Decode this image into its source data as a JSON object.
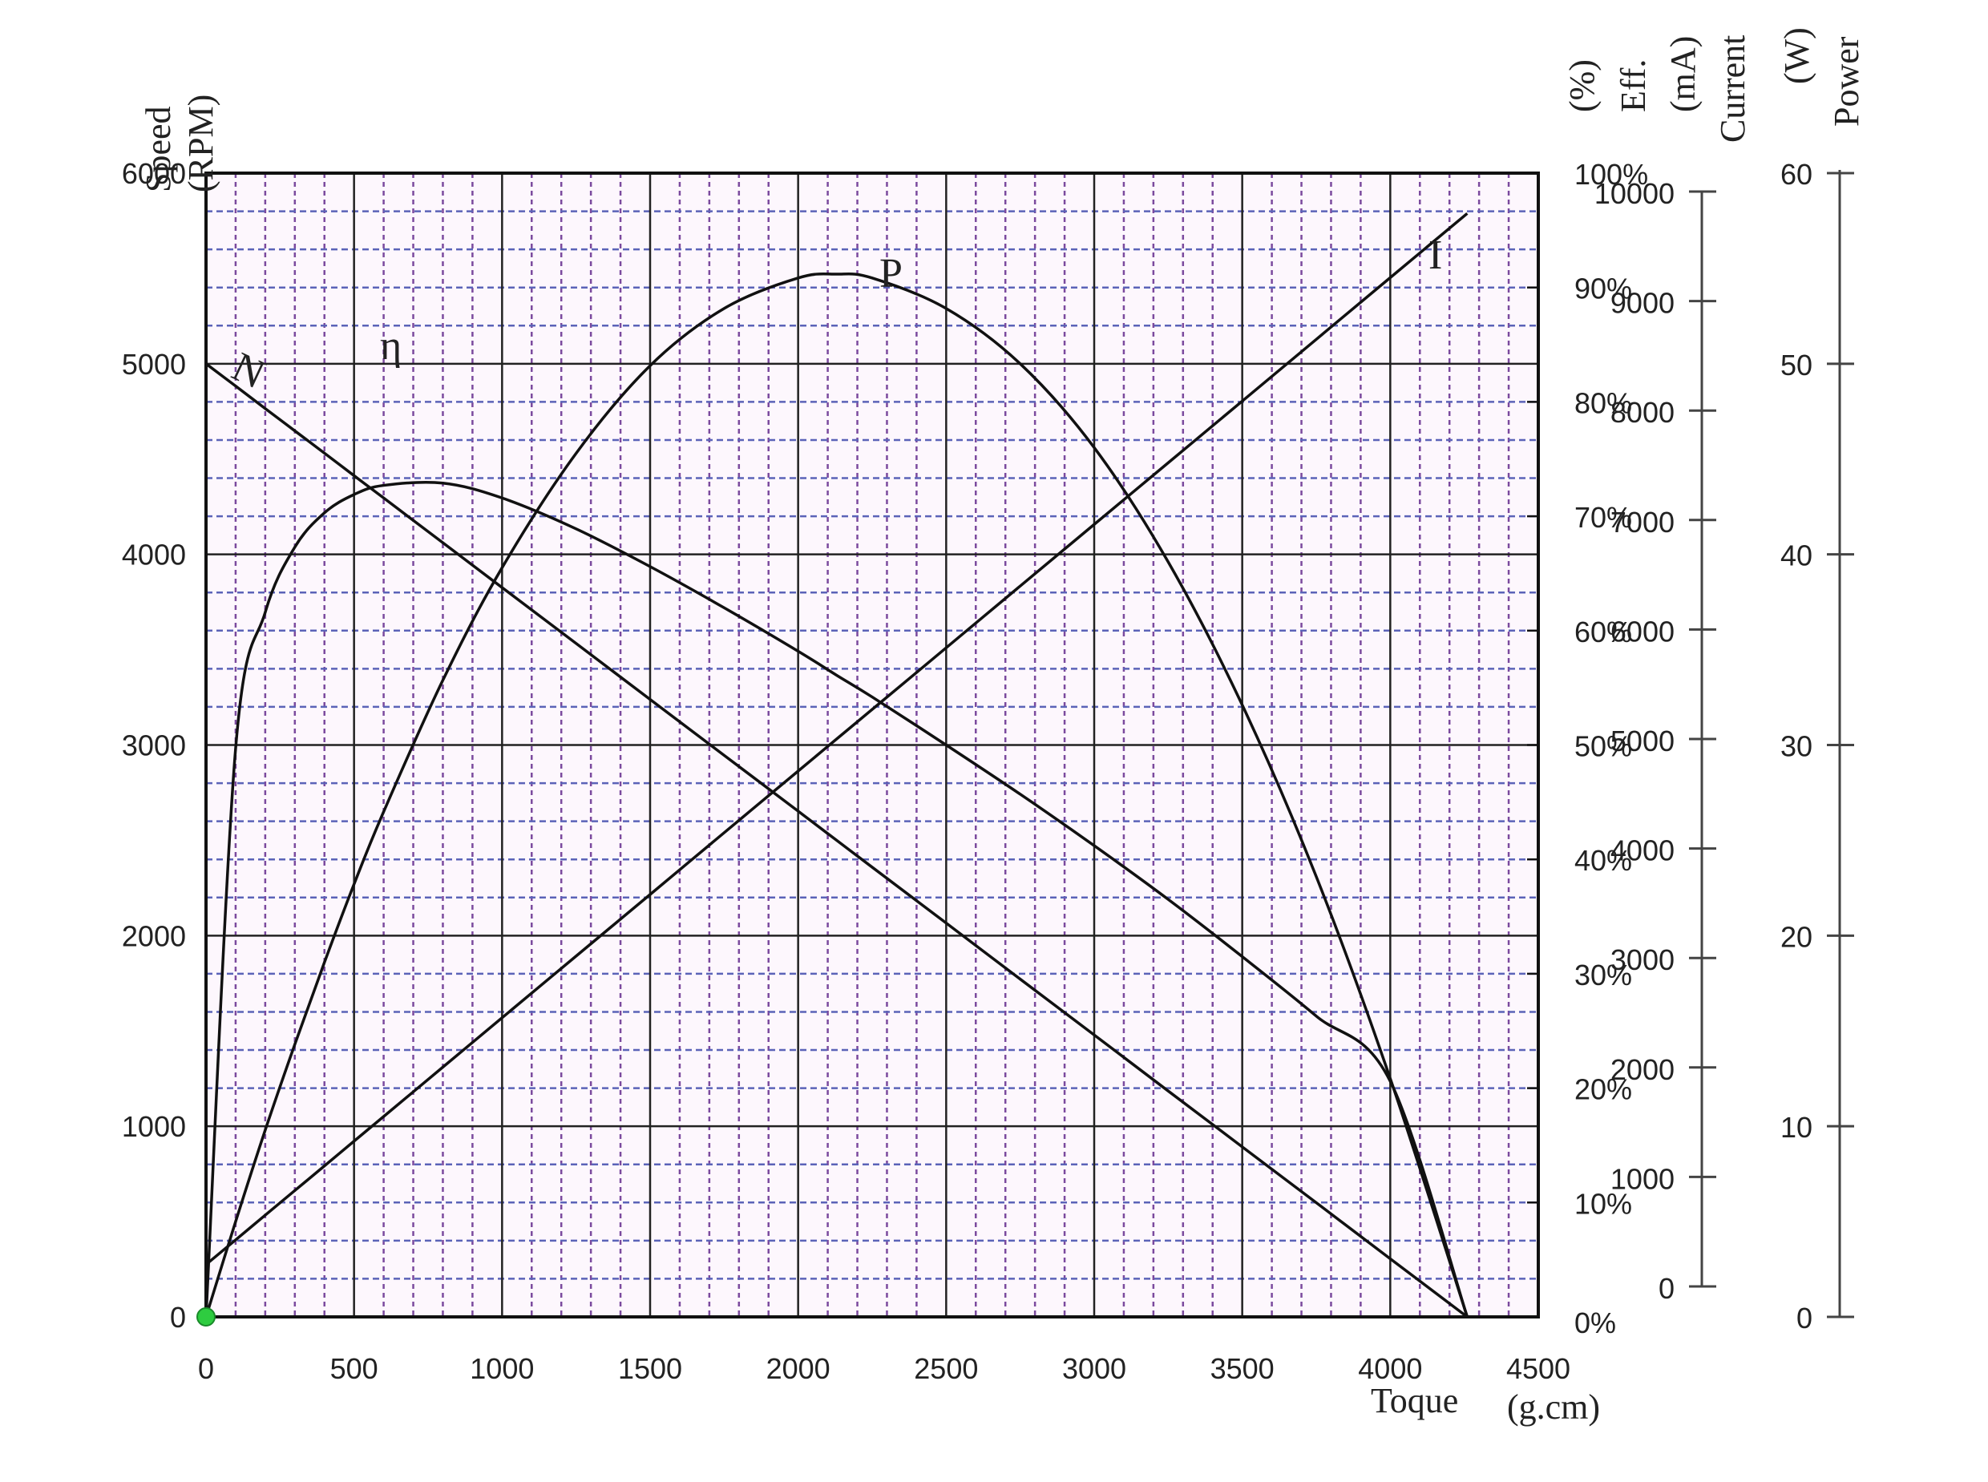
{
  "chart_data": {
    "type": "line",
    "title": "",
    "xlabel": "Toque",
    "xlabel_unit": "(g.cm)",
    "xlim": [
      0,
      4500
    ],
    "xticks": [
      0,
      500,
      1000,
      1500,
      2000,
      2500,
      3000,
      3500,
      4000,
      4500
    ],
    "grid": true,
    "axes": {
      "speed": {
        "label": "Speed",
        "unit": "(RPM)",
        "range": [
          0,
          6000
        ],
        "ticks": [
          0,
          1000,
          2000,
          3000,
          4000,
          5000,
          6000
        ],
        "side": "left"
      },
      "efficiency": {
        "label": "Eff.",
        "unit": "(%)",
        "range": [
          0,
          100
        ],
        "ticks": [
          "0%",
          "10%",
          "20%",
          "30%",
          "40%",
          "50%",
          "60%",
          "70%",
          "80%",
          "90%",
          "100%"
        ],
        "side": "right"
      },
      "current": {
        "label": "Current",
        "unit": "(mA)",
        "range": [
          0,
          10000
        ],
        "ticks": [
          0,
          1000,
          2000,
          3000,
          4000,
          5000,
          6000,
          7000,
          8000,
          9000,
          10000
        ],
        "side": "right-offset"
      },
      "power": {
        "label": "Power",
        "unit": "(W)",
        "range": [
          0,
          60
        ],
        "ticks": [
          0,
          10,
          20,
          30,
          40,
          50,
          60
        ],
        "side": "right-offset-2"
      }
    },
    "x": [
      0,
      100,
      200,
      300,
      400,
      500,
      600,
      800,
      1000,
      1250,
      1500,
      1750,
      2000,
      2130,
      2250,
      2500,
      2750,
      3000,
      3250,
      3500,
      3750,
      4000,
      4260
    ],
    "series": [
      {
        "name": "N",
        "axis": "speed",
        "unit": "RPM",
        "values": [
          5000,
          4883,
          4765,
          4648,
          4531,
          4413,
          4296,
          4061,
          3826,
          3533,
          3239,
          2946,
          2653,
          2500,
          2359,
          2066,
          1772,
          1479,
          1185,
          892,
          599,
          305,
          0
        ]
      },
      {
        "name": "I",
        "axis": "current",
        "unit": "mA",
        "values": [
          200,
          425,
          651,
          876,
          1101,
          1327,
          1552,
          2003,
          2454,
          3017,
          3580,
          4144,
          4707,
          5000,
          5270,
          5833,
          6397,
          6960,
          7523,
          8086,
          8650,
          9214,
          9800
        ]
      },
      {
        "name": "P",
        "axis": "power",
        "unit": "W",
        "values": [
          0,
          5.0,
          9.8,
          14.3,
          18.6,
          22.7,
          26.5,
          33.4,
          39.3,
          45.3,
          49.9,
          52.9,
          54.5,
          54.7,
          54.5,
          52.9,
          50.0,
          45.6,
          39.6,
          32.1,
          23.1,
          12.5,
          0
        ]
      },
      {
        "name": "η",
        "axis": "efficiency",
        "unit": "%",
        "values": [
          0,
          49.7,
          61.6,
          67.3,
          70.3,
          71.9,
          72.7,
          72.9,
          71.6,
          68.9,
          65.6,
          62.0,
          58.2,
          56.1,
          54.2,
          50.0,
          45.7,
          41.2,
          36.5,
          31.5,
          26.3,
          20.6,
          0
        ]
      }
    ],
    "annotations": [
      "N",
      "η",
      "P",
      "I"
    ],
    "origin_marker": {
      "x": 0,
      "y": 0,
      "color": "#2ecc40"
    }
  },
  "labels": {
    "speed_title": "Speed",
    "speed_unit": "(RPM)",
    "eff_title": "Eff.",
    "eff_unit": "(%)",
    "current_title": "Current",
    "current_unit": "(mA)",
    "power_title": "Power",
    "power_unit": "(W)",
    "x_title": "Toque",
    "x_unit": "(g.cm)",
    "curve_N": "N",
    "curve_eta": "η",
    "curve_P": "P",
    "curve_I": "I"
  },
  "colors": {
    "plot_bg": "#fdf7fd",
    "major_grid": "#222222",
    "minor_vgrid": "#7b4a9e",
    "minor_hgrid": "#5b63b8",
    "curve": "#111111",
    "origin_marker": "#2ecc40"
  }
}
